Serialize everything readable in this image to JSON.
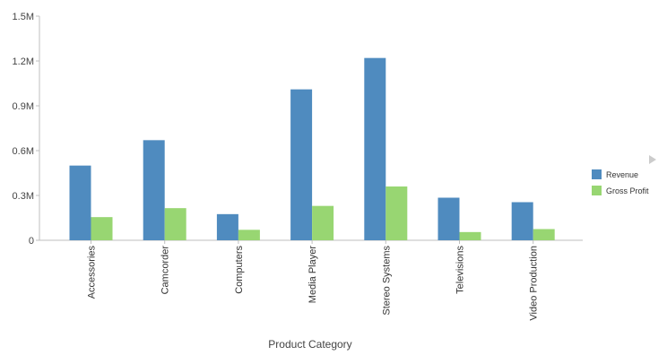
{
  "chart_data": {
    "type": "bar",
    "categories": [
      "Accessories",
      "Camcorder",
      "Computers",
      "Media Player",
      "Stereo Systems",
      "Televisions",
      "Video Production"
    ],
    "series": [
      {
        "name": "Revenue",
        "color": "#4f8bbf",
        "values": [
          500000,
          670000,
          175000,
          1010000,
          1220000,
          285000,
          255000
        ]
      },
      {
        "name": "Gross Profit",
        "color": "#98d672",
        "values": [
          155000,
          215000,
          70000,
          230000,
          360000,
          55000,
          75000
        ]
      }
    ],
    "xlabel": "Product Category",
    "ylabel": "",
    "ylim": [
      0,
      1500000
    ],
    "yticks": [
      {
        "value": 0,
        "label": "0"
      },
      {
        "value": 300000,
        "label": "0.3M"
      },
      {
        "value": 600000,
        "label": "0.6M"
      },
      {
        "value": 900000,
        "label": "0.9M"
      },
      {
        "value": 1200000,
        "label": "1.2M"
      },
      {
        "value": 1500000,
        "label": "1.5M"
      }
    ],
    "grid": false,
    "legend_position": "right"
  },
  "axis_color": "#bfbfbf",
  "legend_arrow_color": "#cccccc"
}
